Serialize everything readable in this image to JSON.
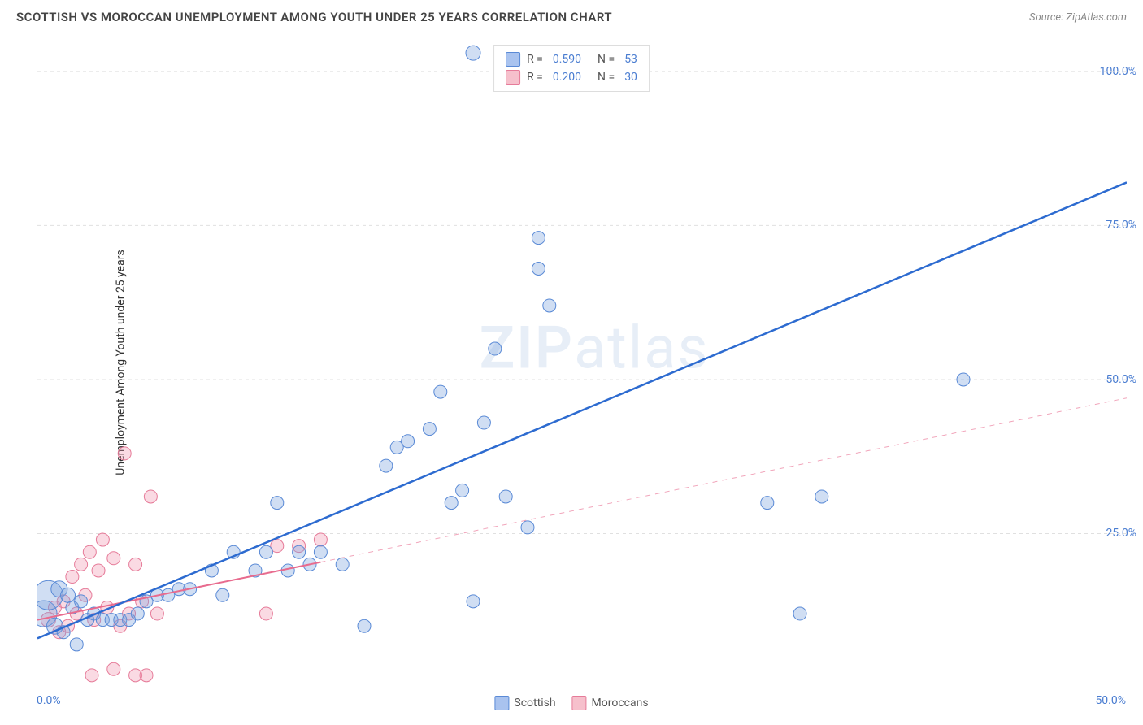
{
  "header": {
    "title": "SCOTTISH VS MOROCCAN UNEMPLOYMENT AMONG YOUTH UNDER 25 YEARS CORRELATION CHART",
    "source": "Source: ZipAtlas.com"
  },
  "chart": {
    "type": "scatter",
    "y_axis_label": "Unemployment Among Youth under 25 years",
    "xlim": [
      0,
      50
    ],
    "ylim": [
      0,
      105
    ],
    "x_ticks": [
      {
        "v": 0,
        "label": "0.0%"
      },
      {
        "v": 50,
        "label": "50.0%"
      }
    ],
    "y_ticks": [
      {
        "v": 25,
        "label": "25.0%"
      },
      {
        "v": 50,
        "label": "50.0%"
      },
      {
        "v": 75,
        "label": "75.0%"
      },
      {
        "v": 100,
        "label": "100.0%"
      }
    ],
    "grid_color": "#e0e0e0",
    "background_color": "#ffffff",
    "watermark": {
      "text_bold": "ZIP",
      "text_rest": "atlas"
    },
    "legend_top": [
      {
        "swatch_fill": "#a9c3ef",
        "swatch_stroke": "#5a8ad6",
        "r_label": "R =",
        "r": "0.590",
        "n_label": "N =",
        "n": "53"
      },
      {
        "swatch_fill": "#f6c0cc",
        "swatch_stroke": "#e67b99",
        "r_label": "R =",
        "r": "0.200",
        "n_label": "N =",
        "n": "30"
      }
    ],
    "legend_bottom": [
      {
        "swatch_fill": "#a9c3ef",
        "swatch_stroke": "#5a8ad6",
        "label": "Scottish"
      },
      {
        "swatch_fill": "#f6c0cc",
        "swatch_stroke": "#e67b99",
        "label": "Moroccans"
      }
    ],
    "series": {
      "scottish": {
        "color_fill": "rgba(120,160,220,0.35)",
        "color_stroke": "#5a8ad6",
        "trend_color": "#2d6bd0",
        "trend_width": 2.5,
        "trend": {
          "x1": 0,
          "y1": 8,
          "x2": 50,
          "y2": 82,
          "solid_end_x": 50
        },
        "points": [
          {
            "x": 0.3,
            "y": 12,
            "r": 16
          },
          {
            "x": 0.5,
            "y": 15,
            "r": 18
          },
          {
            "x": 0.8,
            "y": 10,
            "r": 10
          },
          {
            "x": 1.0,
            "y": 16,
            "r": 10
          },
          {
            "x": 1.2,
            "y": 9,
            "r": 8
          },
          {
            "x": 1.4,
            "y": 15,
            "r": 9
          },
          {
            "x": 1.6,
            "y": 13,
            "r": 8
          },
          {
            "x": 1.8,
            "y": 7,
            "r": 8
          },
          {
            "x": 2.0,
            "y": 14,
            "r": 8
          },
          {
            "x": 2.3,
            "y": 11,
            "r": 8
          },
          {
            "x": 2.6,
            "y": 12,
            "r": 8
          },
          {
            "x": 3.0,
            "y": 11,
            "r": 8
          },
          {
            "x": 3.4,
            "y": 11,
            "r": 8
          },
          {
            "x": 3.8,
            "y": 11,
            "r": 8
          },
          {
            "x": 4.2,
            "y": 11,
            "r": 8
          },
          {
            "x": 4.6,
            "y": 12,
            "r": 8
          },
          {
            "x": 5.0,
            "y": 14,
            "r": 8
          },
          {
            "x": 5.5,
            "y": 15,
            "r": 8
          },
          {
            "x": 6.0,
            "y": 15,
            "r": 8
          },
          {
            "x": 6.5,
            "y": 16,
            "r": 8
          },
          {
            "x": 7.0,
            "y": 16,
            "r": 8
          },
          {
            "x": 8.0,
            "y": 19,
            "r": 8
          },
          {
            "x": 8.5,
            "y": 15,
            "r": 8
          },
          {
            "x": 9.0,
            "y": 22,
            "r": 8
          },
          {
            "x": 10.0,
            "y": 19,
            "r": 8
          },
          {
            "x": 10.5,
            "y": 22,
            "r": 8
          },
          {
            "x": 11.0,
            "y": 30,
            "r": 8
          },
          {
            "x": 11.5,
            "y": 19,
            "r": 8
          },
          {
            "x": 12.0,
            "y": 22,
            "r": 8
          },
          {
            "x": 12.5,
            "y": 20,
            "r": 8
          },
          {
            "x": 13.0,
            "y": 22,
            "r": 8
          },
          {
            "x": 14.0,
            "y": 20,
            "r": 8
          },
          {
            "x": 15.0,
            "y": 10,
            "r": 8
          },
          {
            "x": 16.0,
            "y": 36,
            "r": 8
          },
          {
            "x": 16.5,
            "y": 39,
            "r": 8
          },
          {
            "x": 17.0,
            "y": 40,
            "r": 8
          },
          {
            "x": 18.0,
            "y": 42,
            "r": 8
          },
          {
            "x": 18.5,
            "y": 48,
            "r": 8
          },
          {
            "x": 19.0,
            "y": 30,
            "r": 8
          },
          {
            "x": 19.5,
            "y": 32,
            "r": 8
          },
          {
            "x": 20.0,
            "y": 14,
            "r": 8
          },
          {
            "x": 20.0,
            "y": 103,
            "r": 9
          },
          {
            "x": 20.5,
            "y": 43,
            "r": 8
          },
          {
            "x": 21.0,
            "y": 55,
            "r": 8
          },
          {
            "x": 21.5,
            "y": 31,
            "r": 8
          },
          {
            "x": 22.5,
            "y": 26,
            "r": 8
          },
          {
            "x": 23.0,
            "y": 73,
            "r": 8
          },
          {
            "x": 23.0,
            "y": 68,
            "r": 8
          },
          {
            "x": 23.5,
            "y": 62,
            "r": 8
          },
          {
            "x": 33.5,
            "y": 30,
            "r": 8
          },
          {
            "x": 35.0,
            "y": 12,
            "r": 8
          },
          {
            "x": 36.0,
            "y": 31,
            "r": 8
          },
          {
            "x": 42.5,
            "y": 50,
            "r": 8
          }
        ]
      },
      "moroccans": {
        "color_fill": "rgba(240,150,175,0.35)",
        "color_stroke": "#e67b99",
        "trend_color": "#e86b8e",
        "trend_width": 2,
        "trend": {
          "x1": 0,
          "y1": 11,
          "x2": 50,
          "y2": 47,
          "solid_end_x": 13
        },
        "points": [
          {
            "x": 0.5,
            "y": 11,
            "r": 9
          },
          {
            "x": 0.8,
            "y": 13,
            "r": 8
          },
          {
            "x": 1.0,
            "y": 9,
            "r": 8
          },
          {
            "x": 1.2,
            "y": 14,
            "r": 8
          },
          {
            "x": 1.4,
            "y": 10,
            "r": 8
          },
          {
            "x": 1.6,
            "y": 18,
            "r": 8
          },
          {
            "x": 1.8,
            "y": 12,
            "r": 8
          },
          {
            "x": 2.0,
            "y": 20,
            "r": 8
          },
          {
            "x": 2.2,
            "y": 15,
            "r": 8
          },
          {
            "x": 2.4,
            "y": 22,
            "r": 8
          },
          {
            "x": 2.6,
            "y": 11,
            "r": 8
          },
          {
            "x": 2.8,
            "y": 19,
            "r": 8
          },
          {
            "x": 3.0,
            "y": 24,
            "r": 8
          },
          {
            "x": 3.2,
            "y": 13,
            "r": 8
          },
          {
            "x": 3.5,
            "y": 21,
            "r": 8
          },
          {
            "x": 3.8,
            "y": 10,
            "r": 8
          },
          {
            "x": 4.0,
            "y": 38,
            "r": 8
          },
          {
            "x": 4.2,
            "y": 12,
            "r": 8
          },
          {
            "x": 4.5,
            "y": 20,
            "r": 8
          },
          {
            "x": 4.8,
            "y": 14,
            "r": 8
          },
          {
            "x": 5.2,
            "y": 31,
            "r": 8
          },
          {
            "x": 5.5,
            "y": 12,
            "r": 8
          },
          {
            "x": 2.5,
            "y": 2,
            "r": 8
          },
          {
            "x": 3.5,
            "y": 3,
            "r": 8
          },
          {
            "x": 4.5,
            "y": 2,
            "r": 8
          },
          {
            "x": 5.0,
            "y": 2,
            "r": 8
          },
          {
            "x": 10.5,
            "y": 12,
            "r": 8
          },
          {
            "x": 11.0,
            "y": 23,
            "r": 8
          },
          {
            "x": 12.0,
            "y": 23,
            "r": 8
          },
          {
            "x": 13.0,
            "y": 24,
            "r": 8
          }
        ]
      }
    }
  }
}
